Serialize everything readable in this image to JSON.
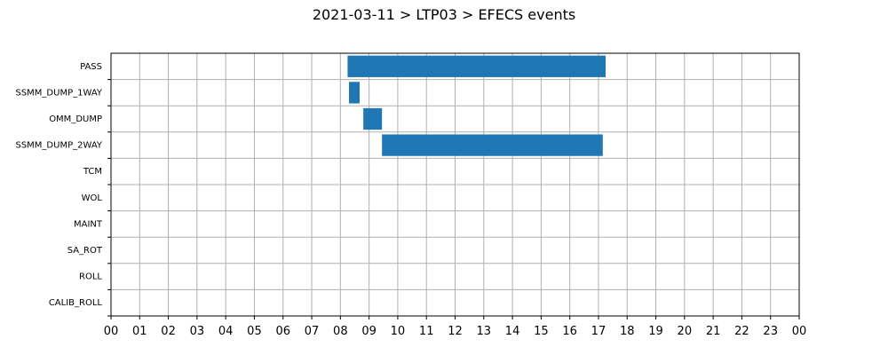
{
  "chart_data": {
    "type": "gantt",
    "title": "2021-03-11 > LTP03 > EFECS events",
    "xlabel": "",
    "ylabel": "",
    "x_unit": "hour of day",
    "xlim": [
      0,
      24
    ],
    "grid": true,
    "categories": [
      "PASS",
      "SSMM_DUMP_1WAY",
      "OMM_DUMP",
      "SSMM_DUMP_2WAY",
      "TCM",
      "WOL",
      "MAINT",
      "SA_ROT",
      "ROLL",
      "CALIB_ROLL"
    ],
    "x_tick_labels": [
      "00",
      "01",
      "02",
      "03",
      "04",
      "05",
      "06",
      "07",
      "08",
      "09",
      "10",
      "11",
      "12",
      "13",
      "14",
      "15",
      "16",
      "17",
      "18",
      "19",
      "20",
      "21",
      "22",
      "23",
      "00"
    ],
    "bar_color": "#1f77b4",
    "events": [
      {
        "category": "PASS",
        "start": 8.25,
        "end": 17.25
      },
      {
        "category": "SSMM_DUMP_1WAY",
        "start": 8.3,
        "end": 8.67
      },
      {
        "category": "OMM_DUMP",
        "start": 8.8,
        "end": 9.45
      },
      {
        "category": "SSMM_DUMP_2WAY",
        "start": 9.45,
        "end": 17.15
      }
    ]
  }
}
